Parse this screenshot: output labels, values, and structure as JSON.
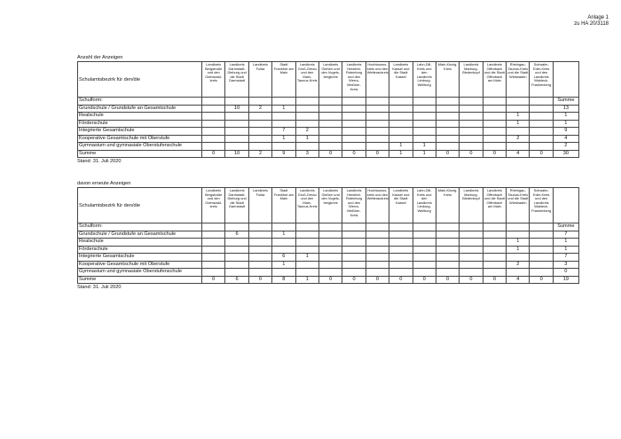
{
  "header": {
    "line1": "Anlage 1",
    "line2": "zu HA 20/3118"
  },
  "columns": [
    "Landkreis Bergstraße und den Odenwald-kreis",
    "Landkreis Darmstadt-Dieburg und die Stadt Darmstadt",
    "Landkreis Fulda",
    "Stadt Frankfurt am Main",
    "Landkreis Groß-Gerau und den Main-Taunus-Kreis",
    "Landkreis Gießen und den Vogels-bergkreis",
    "Landkreis Hersfeld-Rotenburg und den Werra-Meißner-Kreis",
    "Hochtaunus-kreis und den Wetteraukreis",
    "Landkreis Kassel und die Stadt Kassel",
    "Lahn-Dill-Kreis und den Landkreis Limburg-Weilburg",
    "Main-Kinzig-Kreis",
    "Landkreis Marburg-Biedenkopf",
    "Landkreis Offenbach und die Stadt Offenbach am Main",
    "Rheingau-Taunus-Kreis und die Stadt Wiesbaden",
    "Schwalm-Eder-Kreis und den Landkreis Waldeck-Frankenberg"
  ],
  "tables": [
    {
      "title": "Anzahl der Anzeigen",
      "corner_label": "Schulamtsbezirk für den/die",
      "stand": "Stand: 31. Juli 2020",
      "rows": [
        {
          "label": "Schulform:",
          "values": [
            "",
            "",
            "",
            "",
            "",
            "",
            "",
            "",
            "",
            "",
            "",
            "",
            "",
            "",
            "",
            "Summe"
          ]
        },
        {
          "label": "Grundschule / Grundstufe an Gesamtschule",
          "values": [
            "",
            "10",
            "2",
            "1",
            "",
            "",
            "",
            "",
            "",
            "",
            "",
            "",
            "",
            "",
            "",
            "13"
          ]
        },
        {
          "label": "Realschule",
          "values": [
            "",
            "",
            "",
            "",
            "",
            "",
            "",
            "",
            "",
            "",
            "",
            "",
            "",
            "1",
            "",
            "1"
          ]
        },
        {
          "label": "Förderschule",
          "values": [
            "",
            "",
            "",
            "",
            "",
            "",
            "",
            "",
            "",
            "",
            "",
            "",
            "",
            "1",
            "",
            "1"
          ]
        },
        {
          "label": "Integrierte Gesamtschule",
          "values": [
            "",
            "",
            "",
            "7",
            "2",
            "",
            "",
            "",
            "",
            "",
            "",
            "",
            "",
            "",
            "",
            "9"
          ]
        },
        {
          "label": "Kooperative Gesamtschule mit Oberstufe",
          "values": [
            "",
            "",
            "",
            "1",
            "1",
            "",
            "",
            "",
            "",
            "",
            "",
            "",
            "",
            "2",
            "",
            "4"
          ]
        },
        {
          "label": "Gymnasium und gymnasiale Oberstufenschule",
          "values": [
            "",
            "",
            "",
            "",
            "",
            "",
            "",
            "",
            "1",
            "1",
            "",
            "",
            "",
            "",
            "",
            "2"
          ]
        },
        {
          "label": "Summe",
          "values": [
            "0",
            "10",
            "2",
            "9",
            "3",
            "0",
            "0",
            "0",
            "1",
            "1",
            "0",
            "0",
            "0",
            "4",
            "0",
            "30"
          ]
        }
      ]
    },
    {
      "title": "davon erneute Anzeigen",
      "corner_label": "Schulamtsbezirk für den/die",
      "stand": "Stand: 31. Juli 2020",
      "rows": [
        {
          "label": "Schulform:",
          "values": [
            "",
            "",
            "",
            "",
            "",
            "",
            "",
            "",
            "",
            "",
            "",
            "",
            "",
            "",
            "",
            "Summe"
          ]
        },
        {
          "label": "Grundschule  / Grundstufe an Gesamtschule",
          "values": [
            "",
            "6",
            "",
            "1",
            "",
            "",
            "",
            "",
            "",
            "",
            "",
            "",
            "",
            "",
            "",
            "7"
          ]
        },
        {
          "label": "Realschule",
          "values": [
            "",
            "",
            "",
            "",
            "",
            "",
            "",
            "",
            "",
            "",
            "",
            "",
            "",
            "1",
            "",
            "1"
          ]
        },
        {
          "label": "Förderschule",
          "values": [
            "",
            "",
            "",
            "",
            "",
            "",
            "",
            "",
            "",
            "",
            "",
            "",
            "",
            "1",
            "",
            "1"
          ]
        },
        {
          "label": "Integrierte Gesamtschule",
          "values": [
            "",
            "",
            "",
            "6",
            "1",
            "",
            "",
            "",
            "",
            "",
            "",
            "",
            "",
            "",
            "",
            "7"
          ]
        },
        {
          "label": "Kooperative Gesamtschule mit Oberstufe",
          "values": [
            "",
            "",
            "",
            "1",
            "",
            "",
            "",
            "",
            "",
            "",
            "",
            "",
            "",
            "2",
            "",
            "3"
          ]
        },
        {
          "label": "Gymnasium und gymnasiale Oberstufenschule",
          "values": [
            "",
            "",
            "",
            "",
            "",
            "",
            "",
            "",
            "",
            "",
            "",
            "",
            "",
            "",
            "",
            "0"
          ]
        },
        {
          "label": "Summe",
          "values": [
            "0",
            "6",
            "0",
            "8",
            "1",
            "0",
            "0",
            "0",
            "0",
            "0",
            "0",
            "0",
            "0",
            "4",
            "0",
            "19"
          ]
        }
      ]
    }
  ]
}
